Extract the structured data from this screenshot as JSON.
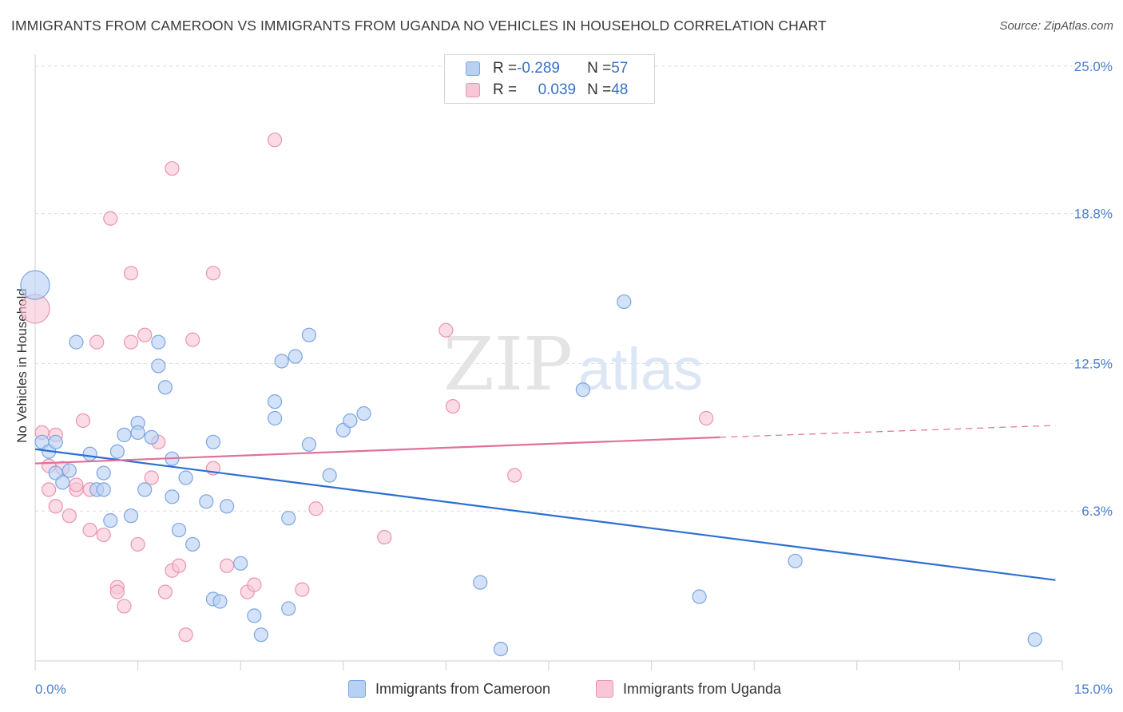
{
  "header": {
    "title": "IMMIGRANTS FROM CAMEROON VS IMMIGRANTS FROM UGANDA NO VEHICLES IN HOUSEHOLD CORRELATION CHART",
    "source": "Source: ZipAtlas.com"
  },
  "watermark": {
    "zip": "ZIP",
    "atlas": "atlas"
  },
  "legend": {
    "rows": [
      {
        "r_label": "R = ",
        "r_value": "-0.289",
        "n_label": "N = ",
        "n_value": "57"
      },
      {
        "r_label": "R = ",
        "r_value": "0.039",
        "n_label": "N = ",
        "n_value": "48"
      }
    ]
  },
  "colors": {
    "cameroon_fill": "#b8d1f3",
    "cameroon_stroke": "#7aa6e0",
    "cameroon_line": "#2c6fd1",
    "uganda_fill": "#f8c6d6",
    "uganda_stroke": "#ea93b0",
    "uganda_line": "#e0709a"
  },
  "chart_data": {
    "type": "scatter",
    "title": "IMMIGRANTS FROM CAMEROON VS IMMIGRANTS FROM UGANDA NO VEHICLES IN HOUSEHOLD CORRELATION CHART",
    "xlabel": "",
    "ylabel": "No Vehicles in Household",
    "xlim": [
      0,
      15
    ],
    "ylim": [
      0,
      25.5
    ],
    "x_tick_labels": [
      "0.0%",
      "15.0%"
    ],
    "y_ticks": [
      6.3,
      12.5,
      18.8,
      25.0
    ],
    "y_tick_labels": [
      "6.3%",
      "12.5%",
      "18.8%",
      "25.0%"
    ],
    "grid": true,
    "legend_position": "top-center",
    "series": [
      {
        "name": "Immigrants from Cameroon",
        "trend": {
          "x": [
            0,
            14.9
          ],
          "y": [
            8.9,
            3.4
          ]
        },
        "points": [
          {
            "x": 0.0,
            "y": 15.8,
            "big": true
          },
          {
            "x": 0.1,
            "y": 9.2
          },
          {
            "x": 0.2,
            "y": 8.8
          },
          {
            "x": 0.3,
            "y": 9.2
          },
          {
            "x": 0.3,
            "y": 7.9
          },
          {
            "x": 0.4,
            "y": 7.5
          },
          {
            "x": 0.5,
            "y": 8.0
          },
          {
            "x": 0.6,
            "y": 13.4
          },
          {
            "x": 0.8,
            "y": 8.7
          },
          {
            "x": 0.9,
            "y": 7.2
          },
          {
            "x": 1.0,
            "y": 7.9
          },
          {
            "x": 1.0,
            "y": 7.2
          },
          {
            "x": 1.1,
            "y": 5.9
          },
          {
            "x": 1.2,
            "y": 8.8
          },
          {
            "x": 1.3,
            "y": 9.5
          },
          {
            "x": 1.4,
            "y": 6.1
          },
          {
            "x": 1.5,
            "y": 10.0
          },
          {
            "x": 1.5,
            "y": 9.6
          },
          {
            "x": 1.6,
            "y": 7.2
          },
          {
            "x": 1.7,
            "y": 9.4
          },
          {
            "x": 1.8,
            "y": 13.4
          },
          {
            "x": 1.8,
            "y": 12.4
          },
          {
            "x": 1.9,
            "y": 11.5
          },
          {
            "x": 2.0,
            "y": 6.9
          },
          {
            "x": 2.0,
            "y": 8.5
          },
          {
            "x": 2.1,
            "y": 5.5
          },
          {
            "x": 2.2,
            "y": 7.7
          },
          {
            "x": 2.3,
            "y": 4.9
          },
          {
            "x": 2.5,
            "y": 6.7
          },
          {
            "x": 2.6,
            "y": 9.2
          },
          {
            "x": 2.6,
            "y": 2.6
          },
          {
            "x": 2.7,
            "y": 2.5
          },
          {
            "x": 2.8,
            "y": 6.5
          },
          {
            "x": 3.0,
            "y": 4.1
          },
          {
            "x": 3.2,
            "y": 1.9
          },
          {
            "x": 3.3,
            "y": 1.1
          },
          {
            "x": 3.5,
            "y": 10.9
          },
          {
            "x": 3.5,
            "y": 10.2
          },
          {
            "x": 3.6,
            "y": 12.6
          },
          {
            "x": 3.7,
            "y": 2.2
          },
          {
            "x": 3.7,
            "y": 6.0
          },
          {
            "x": 3.8,
            "y": 12.8
          },
          {
            "x": 4.0,
            "y": 13.7
          },
          {
            "x": 4.0,
            "y": 9.1
          },
          {
            "x": 4.3,
            "y": 7.8
          },
          {
            "x": 4.5,
            "y": 9.7
          },
          {
            "x": 4.6,
            "y": 10.1
          },
          {
            "x": 4.8,
            "y": 10.4
          },
          {
            "x": 6.5,
            "y": 3.3
          },
          {
            "x": 6.8,
            "y": 0.5
          },
          {
            "x": 8.0,
            "y": 11.4
          },
          {
            "x": 8.6,
            "y": 15.1
          },
          {
            "x": 9.7,
            "y": 2.7
          },
          {
            "x": 11.1,
            "y": 4.2
          },
          {
            "x": 14.6,
            "y": 0.9
          }
        ]
      },
      {
        "name": "Immigrants from Uganda",
        "trend": {
          "x": [
            0,
            10.0
          ],
          "y": [
            8.3,
            9.4
          ]
        },
        "trend_dashed": {
          "x": [
            10.0,
            14.9
          ],
          "y": [
            9.4,
            9.9
          ]
        },
        "points": [
          {
            "x": 0.0,
            "y": 14.8,
            "big": true
          },
          {
            "x": 0.1,
            "y": 9.6
          },
          {
            "x": 0.2,
            "y": 8.2
          },
          {
            "x": 0.2,
            "y": 7.2
          },
          {
            "x": 0.3,
            "y": 9.5
          },
          {
            "x": 0.3,
            "y": 6.5
          },
          {
            "x": 0.4,
            "y": 8.1
          },
          {
            "x": 0.5,
            "y": 6.1
          },
          {
            "x": 0.6,
            "y": 7.2
          },
          {
            "x": 0.6,
            "y": 7.4
          },
          {
            "x": 0.7,
            "y": 10.1
          },
          {
            "x": 0.8,
            "y": 5.5
          },
          {
            "x": 0.8,
            "y": 7.2
          },
          {
            "x": 0.9,
            "y": 13.4
          },
          {
            "x": 1.0,
            "y": 5.3
          },
          {
            "x": 1.1,
            "y": 18.6
          },
          {
            "x": 1.2,
            "y": 3.1
          },
          {
            "x": 1.2,
            "y": 2.9
          },
          {
            "x": 1.3,
            "y": 2.3
          },
          {
            "x": 1.4,
            "y": 16.3
          },
          {
            "x": 1.4,
            "y": 13.4
          },
          {
            "x": 1.5,
            "y": 4.9
          },
          {
            "x": 1.6,
            "y": 13.7
          },
          {
            "x": 1.7,
            "y": 7.7
          },
          {
            "x": 1.8,
            "y": 9.2
          },
          {
            "x": 1.9,
            "y": 2.9
          },
          {
            "x": 2.0,
            "y": 20.7
          },
          {
            "x": 2.0,
            "y": 3.8
          },
          {
            "x": 2.1,
            "y": 4.0
          },
          {
            "x": 2.2,
            "y": 1.1
          },
          {
            "x": 2.3,
            "y": 13.5
          },
          {
            "x": 2.6,
            "y": 8.1
          },
          {
            "x": 2.6,
            "y": 16.3
          },
          {
            "x": 2.8,
            "y": 4.0
          },
          {
            "x": 3.1,
            "y": 2.9
          },
          {
            "x": 3.2,
            "y": 3.2
          },
          {
            "x": 3.5,
            "y": 21.9
          },
          {
            "x": 3.9,
            "y": 3.0
          },
          {
            "x": 4.1,
            "y": 6.4
          },
          {
            "x": 5.1,
            "y": 5.2
          },
          {
            "x": 6.0,
            "y": 13.9
          },
          {
            "x": 6.1,
            "y": 10.7
          },
          {
            "x": 7.0,
            "y": 7.8
          },
          {
            "x": 9.8,
            "y": 10.2
          }
        ]
      }
    ]
  }
}
